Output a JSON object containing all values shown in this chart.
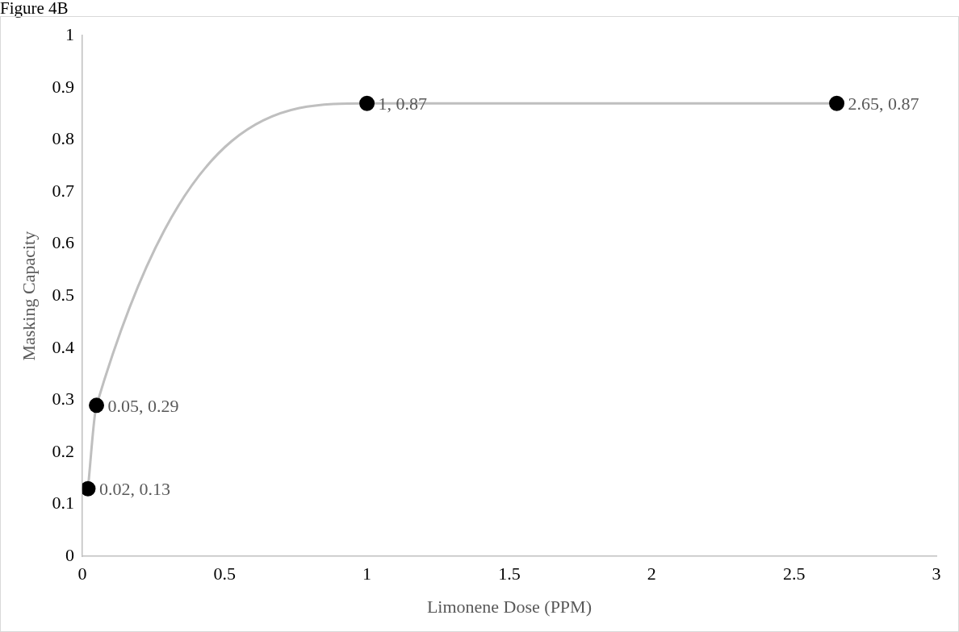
{
  "chart_data": {
    "type": "line",
    "title": "Figure 4B",
    "xlabel": "Limonene Dose (PPM)",
    "ylabel": "Masking Capacity",
    "x": [
      0.02,
      0.05,
      1,
      2.65
    ],
    "series": [
      {
        "color": "#bfbfbf",
        "colors": [
          "#000000",
          "#000000",
          "#000000",
          "#000000"
        ],
        "values": [
          0.13,
          0.29,
          0.87,
          0.87
        ],
        "value_labels": [
          "0.02, 0.13",
          "0.05, 0.29",
          "1, 0.87",
          "2.65, 0.87"
        ]
      }
    ],
    "xlim": [
      0,
      3
    ],
    "xticks": [
      0,
      0.5,
      1,
      1.5,
      2,
      2.5,
      3
    ],
    "ylim": [
      0,
      1
    ],
    "yticks": [
      0,
      0.1,
      0.2,
      0.3,
      0.4,
      0.5,
      0.6,
      0.7,
      0.8,
      0.9,
      1
    ],
    "grid": false,
    "legend": false,
    "marker": "circle",
    "line_style": "solid"
  }
}
